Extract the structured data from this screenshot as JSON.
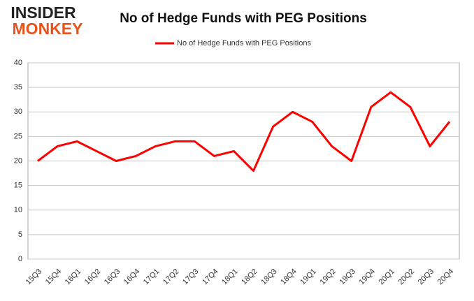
{
  "logo": {
    "line1": "INSIDER",
    "line2": "MONKEY"
  },
  "chart_data": {
    "type": "line",
    "title": "No of Hedge Funds with PEG Positions",
    "categories": [
      "15Q3",
      "15Q4",
      "16Q1",
      "16Q2",
      "16Q3",
      "16Q4",
      "17Q1",
      "17Q2",
      "17Q3",
      "17Q4",
      "18Q1",
      "18Q2",
      "18Q3",
      "18Q4",
      "19Q1",
      "19Q2",
      "19Q3",
      "19Q4",
      "20Q1",
      "20Q2",
      "20Q3",
      "20Q4"
    ],
    "series": [
      {
        "name": "No of Hedge Funds with PEG Positions",
        "color": "#ff0000",
        "values": [
          20,
          23,
          24,
          22,
          20,
          21,
          23,
          24,
          24,
          21,
          22,
          18,
          27,
          30,
          28,
          23,
          20,
          31,
          34,
          31,
          23,
          28
        ]
      }
    ],
    "ylim": [
      0,
      40
    ],
    "yticks": [
      0,
      5,
      10,
      15,
      20,
      25,
      30,
      35,
      40
    ],
    "grid": true
  }
}
